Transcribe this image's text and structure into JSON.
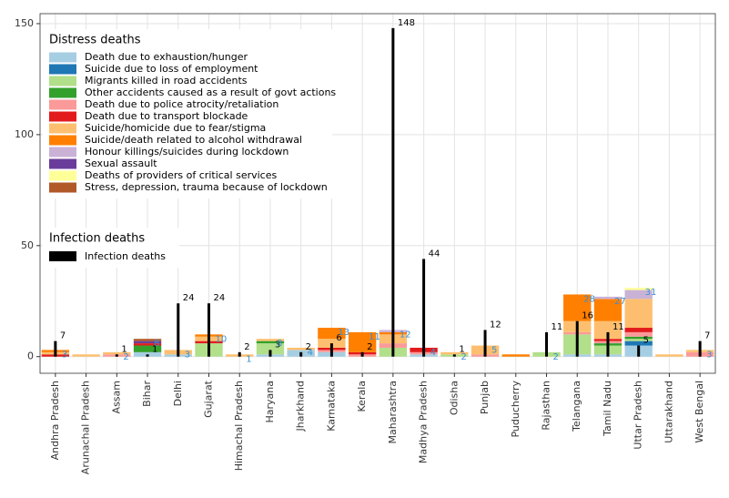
{
  "chart_data": {
    "type": "stacked-bar",
    "categories": [
      "Andhra Pradesh",
      "Arunachal Pradesh",
      "Assam",
      "Bihar",
      "Delhi",
      "Gujarat",
      "Himachal Pradesh",
      "Haryana",
      "Jharkhand",
      "Karnataka",
      "Kerala",
      "Maharashtra",
      "Madhya Pradesh",
      "Odisha",
      "Punjab",
      "Puducherry",
      "Rajasthan",
      "Telangana",
      "Tamil Nadu",
      "Uttar Pradesh",
      "Uttarakhand",
      "West Bengal"
    ],
    "ylim": [
      -7.5,
      154.5
    ],
    "yticks": [
      0,
      50,
      100,
      150
    ],
    "grid": true,
    "legend_titles": [
      "Distress deaths",
      "Infection deaths"
    ],
    "series": [
      {
        "name": "Death due to exhaustion/hunger",
        "color": "#a6cee3",
        "values": [
          0,
          0,
          0,
          2,
          1,
          0,
          0,
          1,
          3,
          2,
          0,
          0,
          1,
          0,
          0,
          0,
          0,
          1,
          1,
          5,
          0,
          0
        ]
      },
      {
        "name": "Suicide due to loss of employment",
        "color": "#1f78b4",
        "values": [
          0,
          0,
          0,
          0,
          0,
          0,
          0,
          0,
          0,
          0,
          0,
          0,
          0,
          0,
          0,
          0,
          0,
          0,
          0,
          2,
          0,
          0
        ]
      },
      {
        "name": "Migrants killed in road accidents",
        "color": "#b2df8a",
        "values": [
          0,
          0,
          0,
          0,
          0,
          6,
          0,
          5,
          0,
          0,
          0,
          4,
          0,
          1,
          0,
          0,
          2,
          9,
          4,
          1,
          0,
          0
        ]
      },
      {
        "name": "Other accidents caused as a result of govt actions",
        "color": "#33a02c",
        "values": [
          0,
          0,
          0,
          3,
          0,
          0,
          0,
          1,
          0,
          0,
          0,
          0,
          0,
          0,
          0,
          0,
          0,
          0,
          1,
          1,
          0,
          0
        ]
      },
      {
        "name": "Death due to police atrocity/retaliation",
        "color": "#fb9a99",
        "values": [
          0,
          0,
          1,
          0,
          0,
          0,
          0,
          0,
          0,
          1,
          1,
          2,
          1,
          0,
          1,
          0,
          0,
          1,
          1,
          2,
          0,
          2
        ]
      },
      {
        "name": "Death due to transport blockade",
        "color": "#e31a1c",
        "values": [
          1,
          0,
          0,
          1,
          0,
          1,
          0,
          0,
          0,
          1,
          1,
          0,
          2,
          0,
          0,
          0,
          0,
          0,
          1,
          2,
          0,
          0
        ]
      },
      {
        "name": "Suicide/homicide due to fear/stigma",
        "color": "#fdbf6f",
        "values": [
          1,
          1,
          1,
          0,
          2,
          2,
          1,
          1,
          1,
          4,
          0,
          4,
          0,
          1,
          4,
          0,
          0,
          5,
          8,
          13,
          1,
          1
        ]
      },
      {
        "name": "Suicide/death related to alcohol withdrawal",
        "color": "#ff7f00",
        "values": [
          1,
          0,
          0,
          0,
          0,
          1,
          0,
          0,
          0,
          5,
          9,
          1,
          0,
          0,
          0,
          1,
          0,
          12,
          10,
          0,
          0,
          0
        ]
      },
      {
        "name": "Honour killings/suicides during lockdown",
        "color": "#cab2d6",
        "values": [
          0,
          0,
          0,
          0,
          0,
          0,
          0,
          0,
          0,
          0,
          0,
          1,
          0,
          0,
          0,
          0,
          0,
          0,
          1,
          4,
          0,
          0
        ]
      },
      {
        "name": "Sexual assault",
        "color": "#6a3d9a",
        "values": [
          0,
          0,
          0,
          1,
          0,
          0,
          0,
          0,
          0,
          0,
          0,
          0,
          0,
          0,
          0,
          0,
          0,
          0,
          0,
          0,
          0,
          0
        ]
      },
      {
        "name": "Deaths of providers of critical services",
        "color": "#ffff99",
        "values": [
          0,
          0,
          0,
          0,
          0,
          0,
          0,
          0,
          0,
          0,
          0,
          0,
          0,
          0,
          0,
          0,
          0,
          0,
          0,
          1,
          0,
          0
        ]
      },
      {
        "name": "Stress, depression, trauma because of lockdown",
        "color": "#b15928",
        "values": [
          0,
          0,
          0,
          1,
          0,
          0,
          0,
          0,
          0,
          0,
          0,
          0,
          0,
          0,
          0,
          0,
          0,
          0,
          0,
          0,
          0,
          0
        ]
      }
    ],
    "infection": {
      "name": "Infection deaths",
      "color": "#000000",
      "values": [
        7,
        null,
        1,
        1,
        24,
        24,
        2,
        3,
        2,
        6,
        2,
        148,
        44,
        1,
        12,
        null,
        11,
        16,
        11,
        5,
        null,
        7
      ]
    },
    "totals": {
      "color": "#3a8fd0",
      "values": [
        3,
        null,
        2,
        8,
        3,
        10,
        1,
        8,
        4,
        13,
        11,
        12,
        4,
        2,
        5,
        null,
        2,
        28,
        27,
        31,
        null,
        3
      ]
    }
  }
}
